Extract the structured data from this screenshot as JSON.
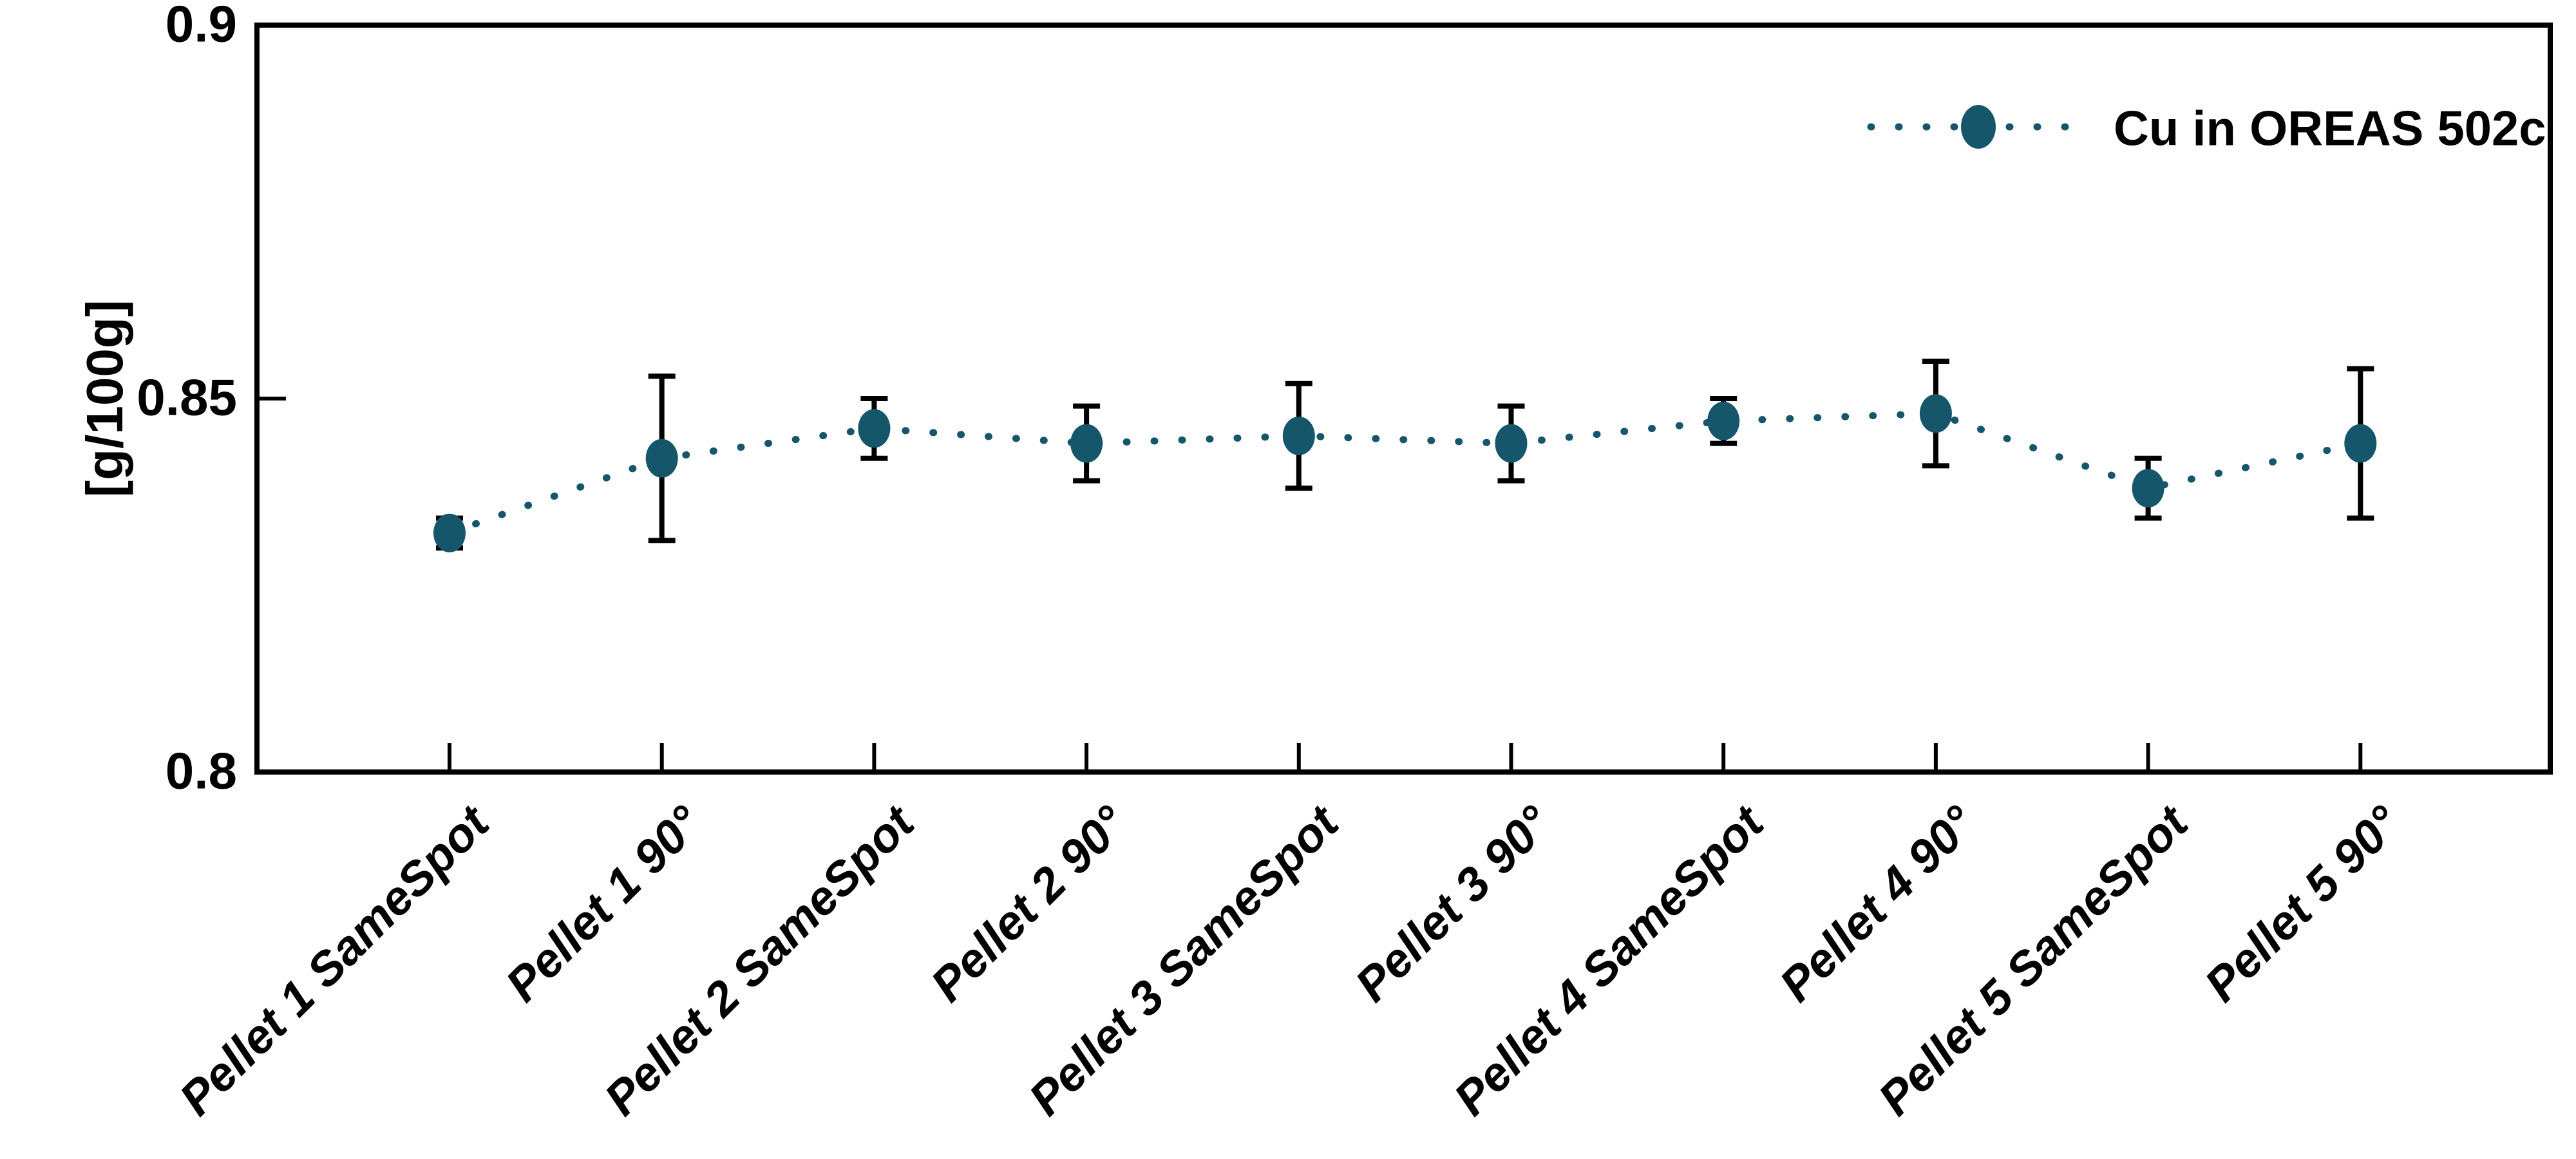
{
  "chart_data": {
    "type": "line",
    "subtype": "scatter-with-errorbars",
    "title": "",
    "xlabel": "",
    "ylabel": "[g/100g]",
    "ylim": [
      0.8,
      0.9
    ],
    "yticks": [
      {
        "value": 0.9,
        "label": "0.9"
      },
      {
        "value": 0.85,
        "label": "0.85"
      },
      {
        "value": 0.8,
        "label": "0.8"
      }
    ],
    "grid": false,
    "legend_position": "upper right",
    "line_style": "dotted",
    "marker": "circle",
    "categories": [
      "Pellet 1 SameSpot",
      "Pellet 1 90°",
      "Pellet 2 SameSpot",
      "Pellet 2 90°",
      "Pellet 3 SameSpot",
      "Pellet 3 90°",
      "Pellet 4 SameSpot",
      "Pellet 4 90°",
      "Pellet 5 SameSpot",
      "Pellet 5 90°"
    ],
    "series": [
      {
        "name": "Cu in OREAS 502c",
        "values": [
          0.832,
          0.842,
          0.846,
          0.844,
          0.845,
          0.844,
          0.847,
          0.848,
          0.838,
          0.844
        ],
        "errors": [
          0.002,
          0.011,
          0.004,
          0.005,
          0.007,
          0.005,
          0.003,
          0.007,
          0.004,
          0.01
        ]
      }
    ],
    "colors": {
      "series": "#16566a",
      "errorbar": "#000000",
      "axis": "#000000",
      "background": "#ffffff"
    }
  }
}
